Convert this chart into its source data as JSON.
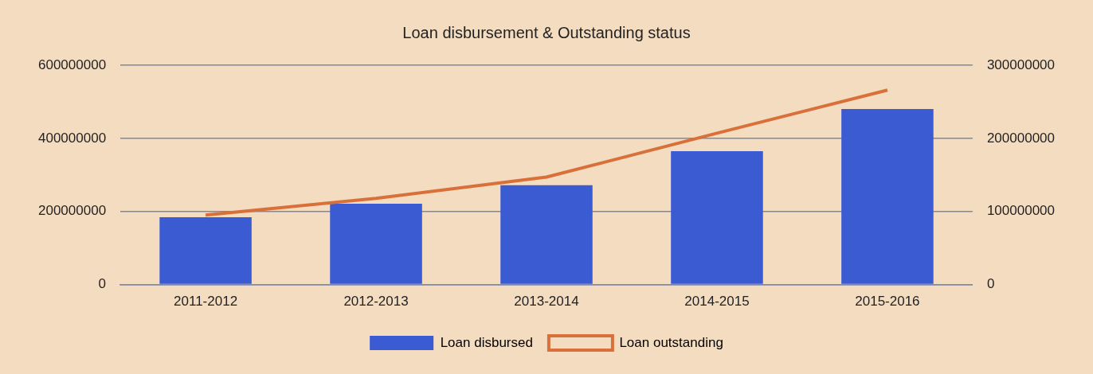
{
  "chart_data": {
    "type": "bar",
    "title": "Loan disbursement & Outstanding status",
    "categories": [
      "2011-2012",
      "2012-2013",
      "2013-2014",
      "2014-2015",
      "2015-2016"
    ],
    "series": [
      {
        "name": "Loan disbursed",
        "color": "#3b5bd2",
        "values": [
          184000000,
          221000000,
          272000000,
          365000000,
          480000000
        ]
      },
      {
        "name": "Loan outstanding",
        "type": "line",
        "axis": "y2",
        "color": "#d9703a",
        "values": [
          95000000,
          118000000,
          147000000,
          207000000,
          266000000
        ]
      }
    ],
    "ylim": [
      0,
      600000000
    ],
    "yticks": [
      0,
      200000000,
      400000000,
      600000000
    ],
    "y2lim": [
      0,
      300000000
    ],
    "y2ticks": [
      0,
      100000000,
      200000000,
      300000000
    ],
    "grid": "y",
    "legend": "bottom",
    "marker": "none",
    "line_style": "solid"
  }
}
